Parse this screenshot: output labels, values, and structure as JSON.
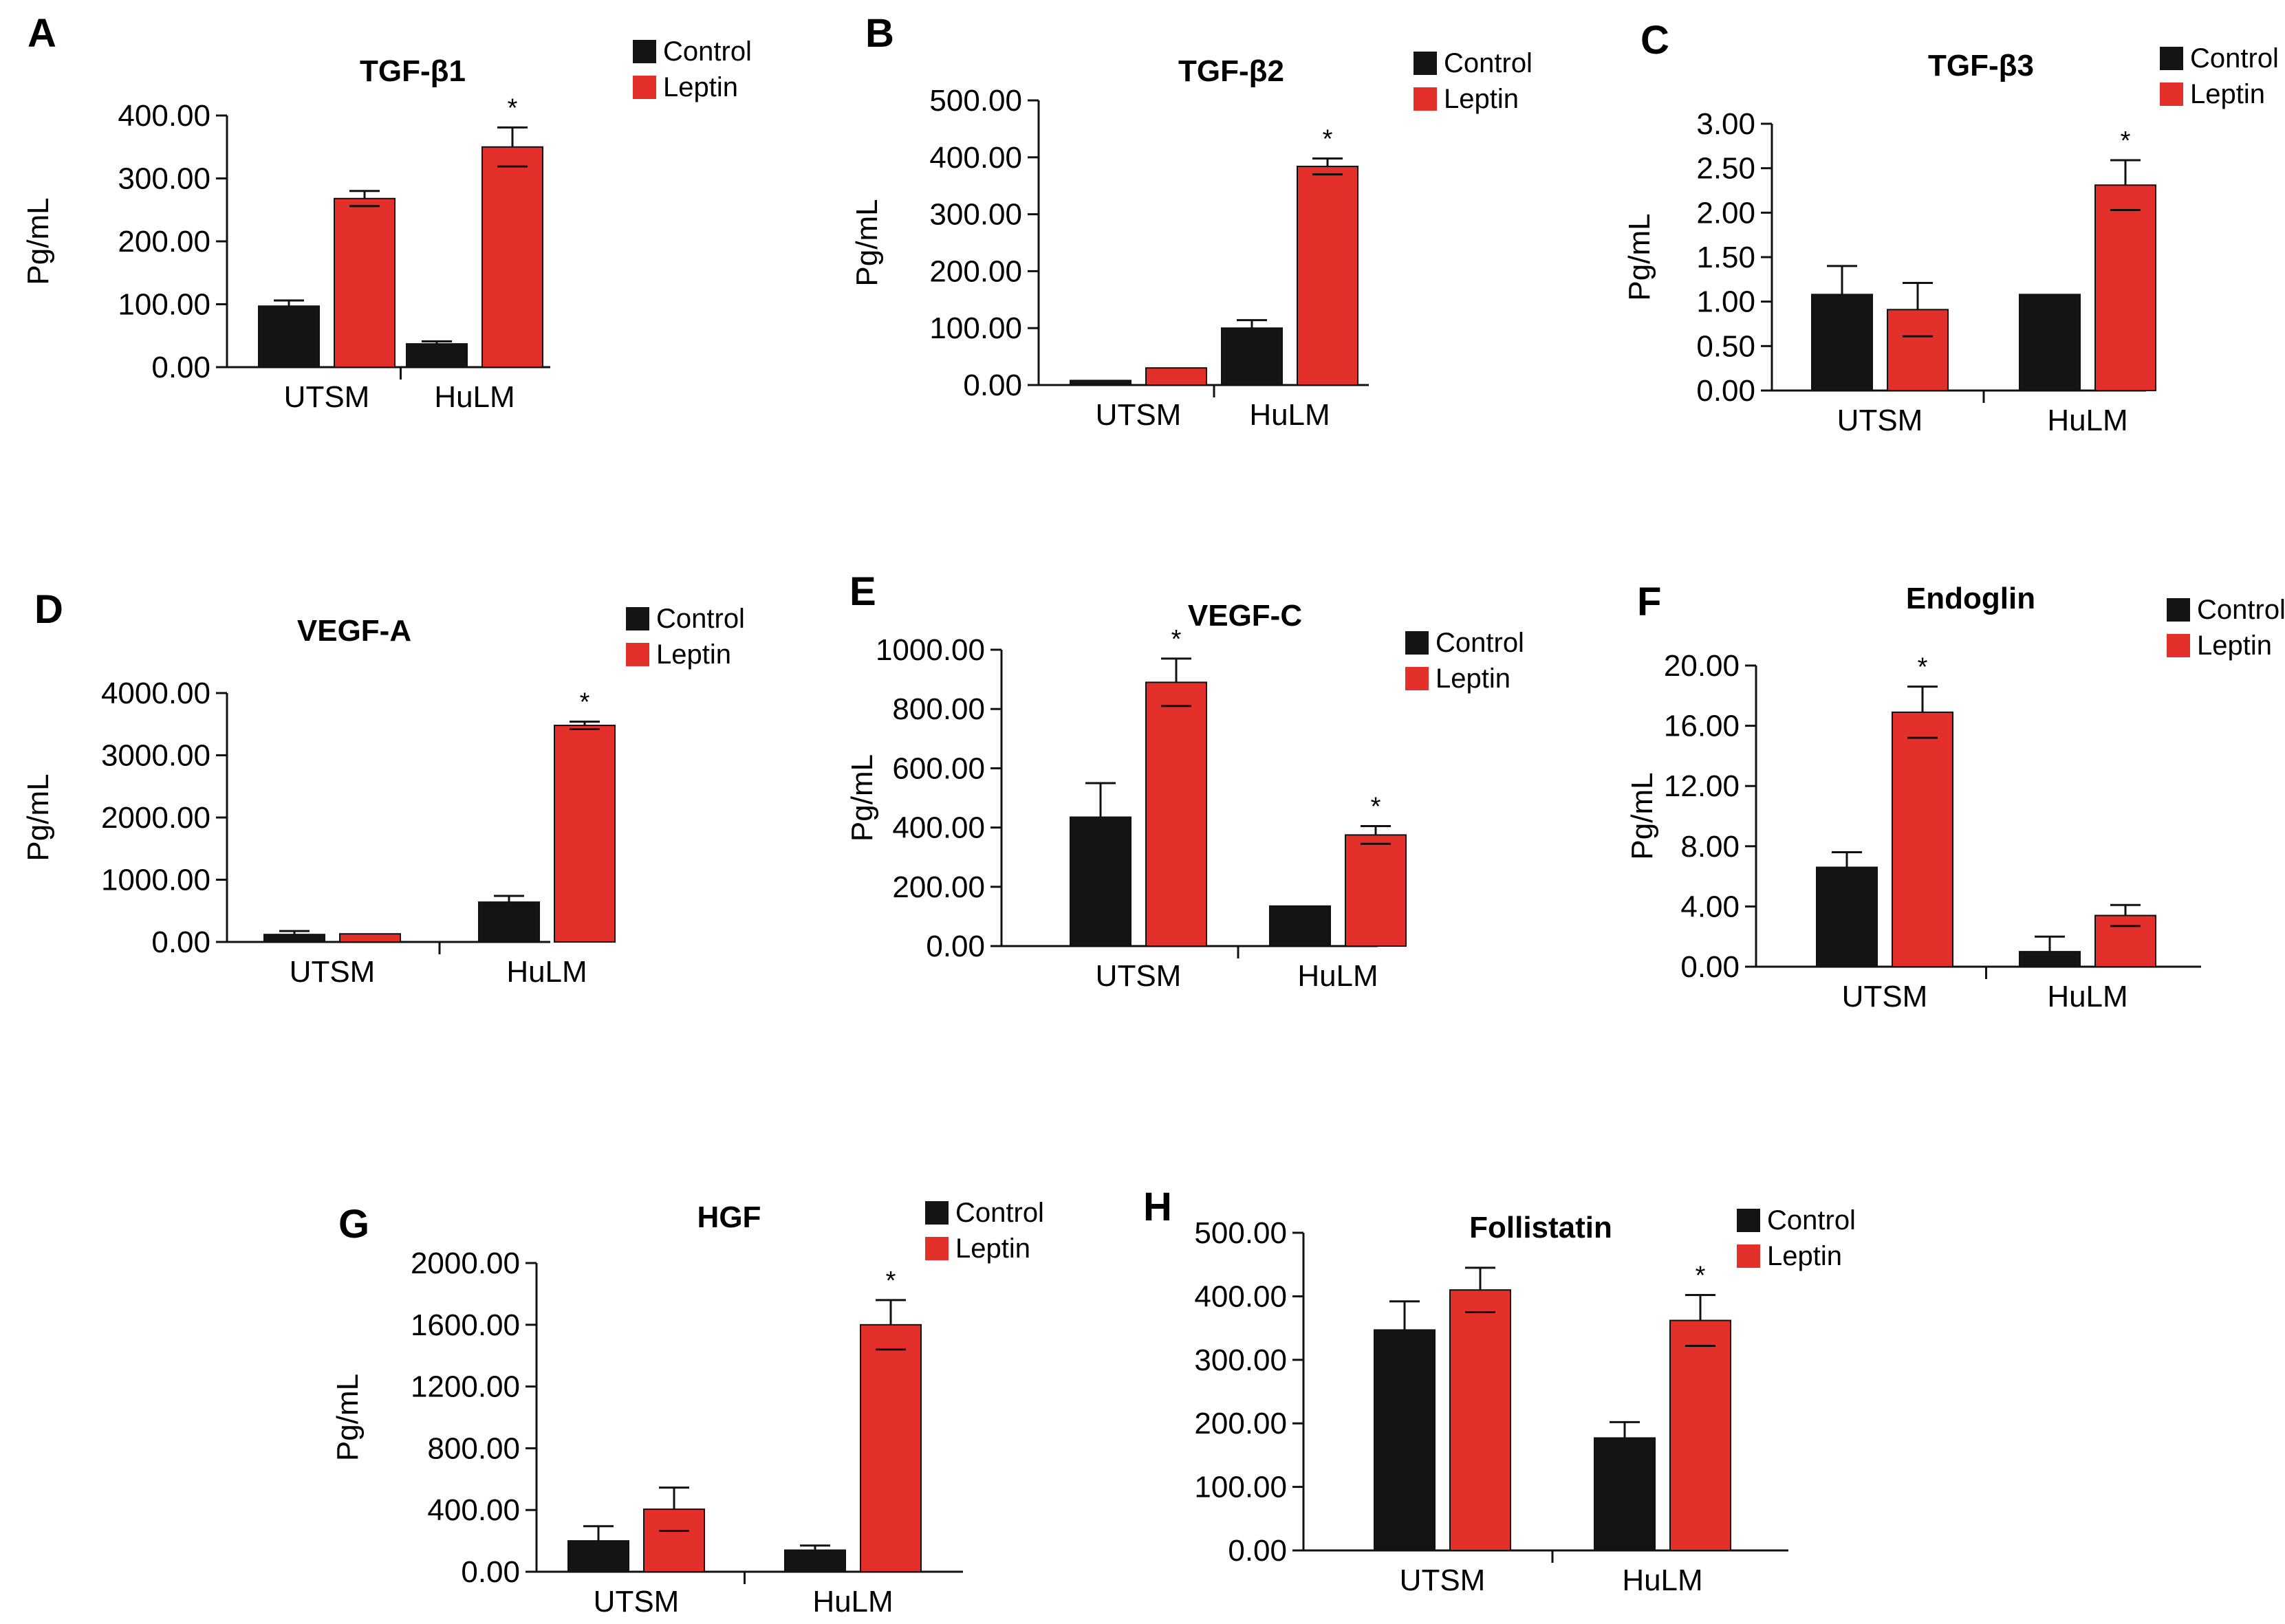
{
  "colors": {
    "control": "#141414",
    "leptin": "#e4302b",
    "axis": "#111111"
  },
  "chart_data": [
    {
      "panel": "A",
      "type": "bar",
      "title": "TGF-β1",
      "ylabel": "Pg/mL",
      "xlabel": "",
      "categories": [
        "UTSM",
        "HuLM"
      ],
      "ylim": [
        0,
        400
      ],
      "yticks": [
        "0.00",
        "100.00",
        "200.00",
        "300.00",
        "400.00"
      ],
      "legend": "top-right",
      "series": [
        {
          "name": "Control",
          "values": [
            97,
            37
          ],
          "errors": [
            9,
            4
          ],
          "sig": [
            false,
            false
          ]
        },
        {
          "name": "Leptin",
          "values": [
            268,
            350
          ],
          "errors": [
            12,
            31
          ],
          "sig": [
            false,
            true
          ]
        }
      ]
    },
    {
      "panel": "B",
      "type": "bar",
      "title": "TGF-β2",
      "ylabel": "Pg/mL",
      "xlabel": "",
      "categories": [
        "UTSM",
        "HuLM"
      ],
      "ylim": [
        0,
        500
      ],
      "yticks": [
        "0.00",
        "100.00",
        "200.00",
        "300.00",
        "400.00",
        "500.00"
      ],
      "legend": "top-right",
      "series": [
        {
          "name": "Control",
          "values": [
            8,
            100
          ],
          "errors": [
            0,
            14
          ],
          "sig": [
            false,
            false
          ]
        },
        {
          "name": "Leptin",
          "values": [
            30,
            384
          ],
          "errors": [
            0,
            14
          ],
          "sig": [
            false,
            true
          ]
        }
      ]
    },
    {
      "panel": "C",
      "type": "bar",
      "title": "TGF-β3",
      "ylabel": "Pg/mL",
      "xlabel": "",
      "categories": [
        "UTSM",
        "HuLM"
      ],
      "ylim": [
        0,
        3
      ],
      "yticks": [
        "0.00",
        "0.50",
        "1.00",
        "1.50",
        "2.00",
        "2.50",
        "3.00"
      ],
      "legend": "top-right",
      "series": [
        {
          "name": "Control",
          "values": [
            1.08,
            1.08
          ],
          "errors": [
            0.32,
            0
          ],
          "sig": [
            false,
            false
          ]
        },
        {
          "name": "Leptin",
          "values": [
            0.91,
            2.31
          ],
          "errors": [
            0.3,
            0.28
          ],
          "sig": [
            false,
            true
          ]
        }
      ]
    },
    {
      "panel": "D",
      "type": "bar",
      "title": "VEGF-A",
      "ylabel": "Pg/mL",
      "xlabel": "",
      "categories": [
        "UTSM",
        "HuLM"
      ],
      "ylim": [
        0,
        4000
      ],
      "yticks": [
        "0.00",
        "1000.00",
        "2000.00",
        "3000.00",
        "4000.00"
      ],
      "legend": "top-right",
      "series": [
        {
          "name": "Control",
          "values": [
            120,
            640
          ],
          "errors": [
            55,
            100
          ],
          "sig": [
            false,
            false
          ]
        },
        {
          "name": "Leptin",
          "values": [
            130,
            3480
          ],
          "errors": [
            0,
            60
          ],
          "sig": [
            false,
            true
          ]
        }
      ]
    },
    {
      "panel": "E",
      "type": "bar",
      "title": "VEGF-C",
      "ylabel": "Pg/mL",
      "xlabel": "",
      "categories": [
        "UTSM",
        "HuLM"
      ],
      "ylim": [
        0,
        1000
      ],
      "yticks": [
        "0.00",
        "200.00",
        "400.00",
        "600.00",
        "800.00",
        "1000.00"
      ],
      "legend": "top-right",
      "series": [
        {
          "name": "Control",
          "values": [
            435,
            135
          ],
          "errors": [
            115,
            0
          ],
          "sig": [
            false,
            false
          ]
        },
        {
          "name": "Leptin",
          "values": [
            890,
            375
          ],
          "errors": [
            80,
            30
          ],
          "sig": [
            true,
            true
          ]
        }
      ]
    },
    {
      "panel": "F",
      "type": "bar",
      "title": "Endoglin",
      "ylabel": "Pg/mL",
      "xlabel": "",
      "categories": [
        "UTSM",
        "HuLM"
      ],
      "ylim": [
        0,
        20
      ],
      "yticks": [
        "0.00",
        "4.00",
        "8.00",
        "12.00",
        "16.00",
        "20.00"
      ],
      "legend": "top-right",
      "series": [
        {
          "name": "Control",
          "values": [
            6.6,
            1.0
          ],
          "errors": [
            1.0,
            1.0
          ],
          "sig": [
            false,
            false
          ]
        },
        {
          "name": "Leptin",
          "values": [
            16.9,
            3.4
          ],
          "errors": [
            1.7,
            0.7
          ],
          "sig": [
            true,
            false
          ]
        }
      ]
    },
    {
      "panel": "G",
      "type": "bar",
      "title": "HGF",
      "ylabel": "Pg/mL",
      "xlabel": "",
      "categories": [
        "UTSM",
        "HuLM"
      ],
      "ylim": [
        0,
        2000
      ],
      "yticks": [
        "0.00",
        "400.00",
        "800.00",
        "1200.00",
        "1600.00",
        "2000.00"
      ],
      "legend": "top-right",
      "series": [
        {
          "name": "Control",
          "values": [
            200,
            140
          ],
          "errors": [
            95,
            30
          ],
          "sig": [
            false,
            false
          ]
        },
        {
          "name": "Leptin",
          "values": [
            405,
            1600
          ],
          "errors": [
            140,
            160
          ],
          "sig": [
            false,
            true
          ]
        }
      ]
    },
    {
      "panel": "H",
      "type": "bar",
      "title": "Follistatin",
      "ylabel": "",
      "xlabel": "",
      "categories": [
        "UTSM",
        "HuLM"
      ],
      "ylim": [
        0,
        500
      ],
      "yticks": [
        "0.00",
        "100.00",
        "200.00",
        "300.00",
        "400.00",
        "500.00"
      ],
      "legend": "top-right",
      "series": [
        {
          "name": "Control",
          "values": [
            347,
            177
          ],
          "errors": [
            45,
            25
          ],
          "sig": [
            false,
            false
          ]
        },
        {
          "name": "Leptin",
          "values": [
            410,
            362
          ],
          "errors": [
            35,
            40
          ],
          "sig": [
            false,
            true
          ]
        }
      ]
    }
  ]
}
